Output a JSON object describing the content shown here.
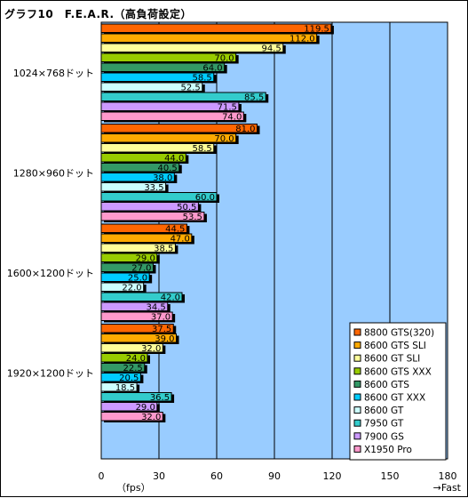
{
  "title": "グラフ10　F.E.A.R.（高負荷設定）",
  "chart_data": {
    "type": "bar",
    "orientation": "horizontal",
    "title": "グラフ10　F.E.A.R.（高負荷設定）",
    "xlabel": "（fps）",
    "x_arrow_label": "→Fast",
    "xlim": [
      0,
      180
    ],
    "xticks": [
      "0",
      "30",
      "60",
      "90",
      "120",
      "150",
      "180"
    ],
    "grid": true,
    "legend_position": "bottom-right",
    "categories": [
      "1024×768ドット",
      "1280×960ドット",
      "1600×1200ドット",
      "1920×1200ドット"
    ],
    "series": [
      {
        "name": "8800 GTS(320)",
        "color": "#ff6600",
        "values": [
          119.5,
          81.0,
          44.5,
          37.5
        ]
      },
      {
        "name": "8600 GTS SLI",
        "color": "#ffaa00",
        "values": [
          112.0,
          70.0,
          47.0,
          39.0
        ]
      },
      {
        "name": "8600 GT SLI",
        "color": "#ffff99",
        "values": [
          94.5,
          58.5,
          38.5,
          32.0
        ]
      },
      {
        "name": "8600 GTS XXX",
        "color": "#99cc00",
        "values": [
          70.0,
          44.0,
          29.0,
          24.0
        ]
      },
      {
        "name": "8600 GTS",
        "color": "#339966",
        "values": [
          64.0,
          40.5,
          27.0,
          22.5
        ]
      },
      {
        "name": "8600 GT XXX",
        "color": "#00ccff",
        "values": [
          58.5,
          38.0,
          25.0,
          20.5
        ]
      },
      {
        "name": "8600 GT",
        "color": "#ccffff",
        "values": [
          52.5,
          33.5,
          22.0,
          18.5
        ]
      },
      {
        "name": "7950 GT",
        "color": "#33cccc",
        "values": [
          85.5,
          60.0,
          42.0,
          36.5
        ]
      },
      {
        "name": "7900 GS",
        "color": "#cc99ff",
        "values": [
          71.5,
          50.5,
          34.5,
          29.0
        ]
      },
      {
        "name": "X1950 Pro",
        "color": "#ff99cc",
        "values": [
          74.0,
          53.5,
          37.0,
          32.0
        ]
      }
    ],
    "value_labels": [
      [
        "119.5",
        "81.0",
        "44.5",
        "37.5"
      ],
      [
        "112.0",
        "70.0",
        "47.0",
        "39.0"
      ],
      [
        "94.5",
        "58.5",
        "38.5",
        "32.0"
      ],
      [
        "70.0",
        "44.0",
        "29.0",
        "24.0"
      ],
      [
        "64.0",
        "40.5",
        "27.0",
        "22.5"
      ],
      [
        "58.5",
        "38.0",
        "25.0",
        "20.5"
      ],
      [
        "52.5",
        "33.5",
        "22.0",
        "18.5"
      ],
      [
        "85.5",
        "60.0",
        "42.0",
        "36.5"
      ],
      [
        "71.5",
        "50.5",
        "34.5",
        "29.0"
      ],
      [
        "74.0",
        "53.5",
        "37.0",
        "32.0"
      ]
    ],
    "colors": {
      "plot_background": "#99ccff",
      "gridline": "#000000",
      "bar_border": "#000000",
      "bar_shadow": "#000000"
    }
  }
}
